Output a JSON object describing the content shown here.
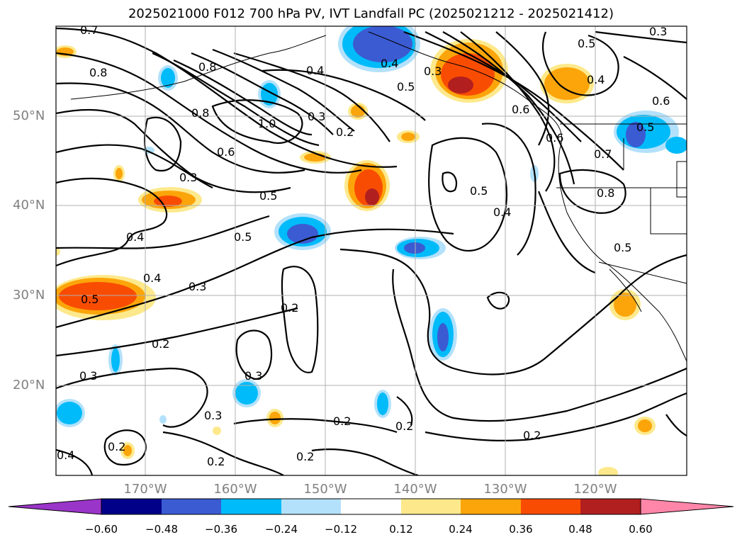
{
  "title": "2025021000 F012 700 hPa PV, IVT Landfall PC (2025021212 - 2025021412)",
  "map": {
    "lat_ticks": [
      "50°N",
      "40°N",
      "30°N",
      "20°N"
    ],
    "lon_ticks": [
      "170°W",
      "160°W",
      "150°W",
      "140°W",
      "130°W",
      "120°W"
    ],
    "contour_labels": [
      "0.7",
      "0.8",
      "0.8",
      "0.8",
      "0.6",
      "1.0",
      "0.4",
      "0.3",
      "0.2",
      "0.5",
      "0.4",
      "0.3",
      "0.5",
      "0.6",
      "0.6",
      "0.5",
      "0.4",
      "0.6",
      "0.7",
      "0.8",
      "0.5",
      "0.5",
      "0.4",
      "0.3",
      "0.5",
      "0.5",
      "0.4",
      "0.4",
      "0.3",
      "0.2",
      "0.5",
      "0.2",
      "0.3",
      "0.3",
      "0.3",
      "0.2",
      "0.2",
      "0.2",
      "0.2",
      "0.2",
      "0.3",
      "0.2",
      "0.4"
    ],
    "fill_colors": {
      "pos_low": "#fde98c",
      "pos_mid": "#fca50a",
      "pos_high": "#f94c03",
      "pos_max": "#b21f1f",
      "neg_low": "#b3e1fb",
      "neg_mid": "#00bbf9",
      "neg_high": "#3b5bd3"
    }
  },
  "colorbar": {
    "labels": [
      "−0.60",
      "−0.48",
      "−0.36",
      "−0.24",
      "−0.12",
      "0.12",
      "0.24",
      "0.36",
      "0.48",
      "0.60"
    ],
    "colors": [
      "#9a35c9",
      "#000088",
      "#3b5bd3",
      "#00bbf9",
      "#b3e1fb",
      "#ffffff",
      "#fde98c",
      "#fca50a",
      "#f94c03",
      "#b21f1f",
      "#fe86a9"
    ]
  }
}
